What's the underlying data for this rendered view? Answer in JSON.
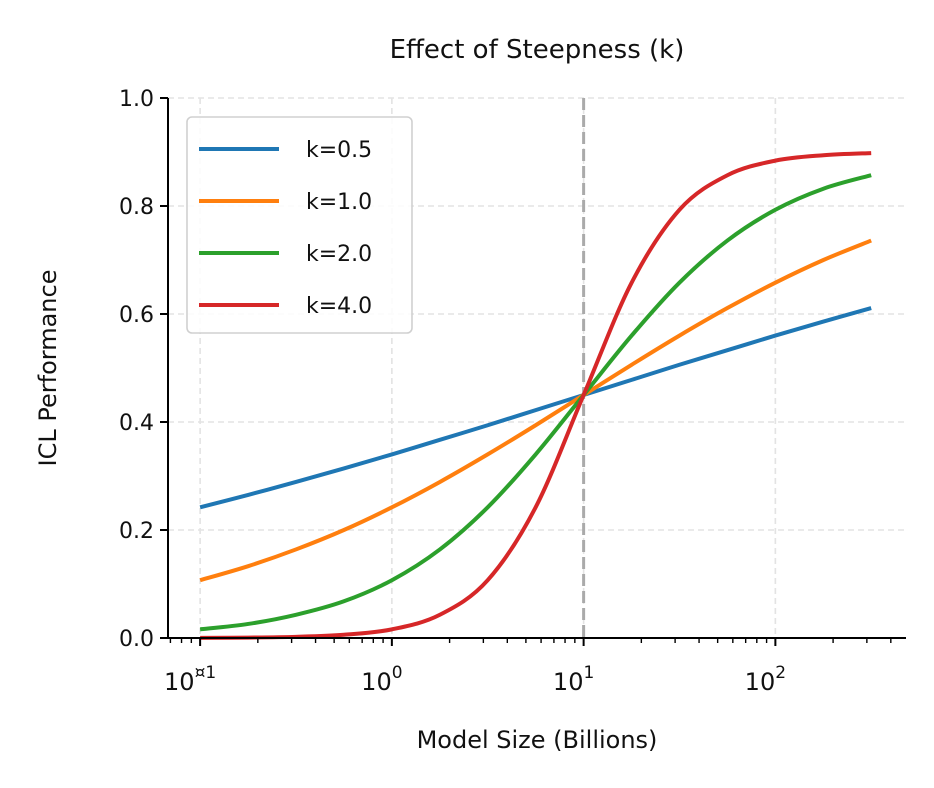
{
  "chart_data": {
    "type": "line",
    "title": "Effect of Steepness (k)",
    "xlabel": "Model Size (Billions)",
    "ylabel": "ICL Performance",
    "xscale": "log",
    "xlim": [
      0.068,
      480
    ],
    "ylim": [
      0,
      1
    ],
    "x_ticks": [
      {
        "value": 0.1,
        "base": "10",
        "exp": "¤1"
      },
      {
        "value": 1,
        "base": "10",
        "exp": "0"
      },
      {
        "value": 10,
        "base": "10",
        "exp": "1"
      },
      {
        "value": 100,
        "base": "10",
        "exp": "2"
      }
    ],
    "y_ticks": [
      "0.0",
      "0.2",
      "0.4",
      "0.6",
      "0.8",
      "1.0"
    ],
    "grid": true,
    "legend": "top-left",
    "vline": {
      "x": 10,
      "color": "#aaaaaa",
      "style": "dashed"
    },
    "x": [
      0.1,
      0.178,
      0.316,
      0.562,
      1,
      1.78,
      3.16,
      5.62,
      10,
      17.8,
      31.6,
      56.2,
      100,
      178,
      316
    ],
    "series": [
      {
        "name": "k=0.5",
        "color": "#1f77b4",
        "values": [
          0.242,
          0.265,
          0.289,
          0.314,
          0.34,
          0.367,
          0.394,
          0.422,
          0.45,
          0.478,
          0.506,
          0.533,
          0.56,
          0.586,
          0.611
        ]
      },
      {
        "name": "k=1.0",
        "color": "#ff7f0e",
        "values": [
          0.107,
          0.133,
          0.164,
          0.2,
          0.242,
          0.289,
          0.34,
          0.394,
          0.45,
          0.506,
          0.56,
          0.611,
          0.658,
          0.7,
          0.736
        ]
      },
      {
        "name": "k=2.0",
        "color": "#2ca02c",
        "values": [
          0.016,
          0.026,
          0.043,
          0.068,
          0.107,
          0.164,
          0.242,
          0.34,
          0.45,
          0.56,
          0.658,
          0.736,
          0.793,
          0.832,
          0.857
        ]
      },
      {
        "name": "k=4.0",
        "color": "#d62728",
        "values": [
          0.0003,
          0.0008,
          0.0022,
          0.006,
          0.016,
          0.043,
          0.107,
          0.242,
          0.45,
          0.658,
          0.793,
          0.857,
          0.884,
          0.894,
          0.898
        ]
      }
    ]
  }
}
